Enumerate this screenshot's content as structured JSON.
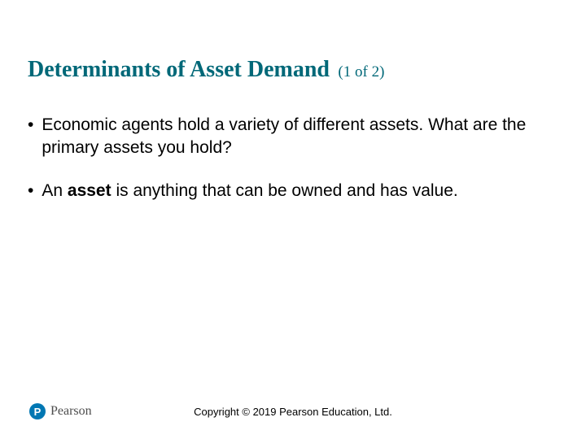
{
  "title": {
    "main": "Determinants of Asset Demand",
    "sub": "(1 of 2)",
    "color": "#006878",
    "main_fontsize": 28,
    "sub_fontsize": 19
  },
  "bullets": {
    "fontsize": 21,
    "text_color": "#000000",
    "items": [
      {
        "html": "Economic agents hold a variety of different assets. What are the primary assets you hold?"
      },
      {
        "html": "An <b>asset</b> is anything that can be owned and has value."
      }
    ]
  },
  "footer": {
    "logo_letter": "P",
    "logo_bg": "#0077b3",
    "logo_text": "Pearson",
    "logo_text_color": "#4d4d4d",
    "copyright": "Copyright © 2019 Pearson Education, Ltd.",
    "copyright_fontsize": 13
  },
  "background_color": "#ffffff"
}
